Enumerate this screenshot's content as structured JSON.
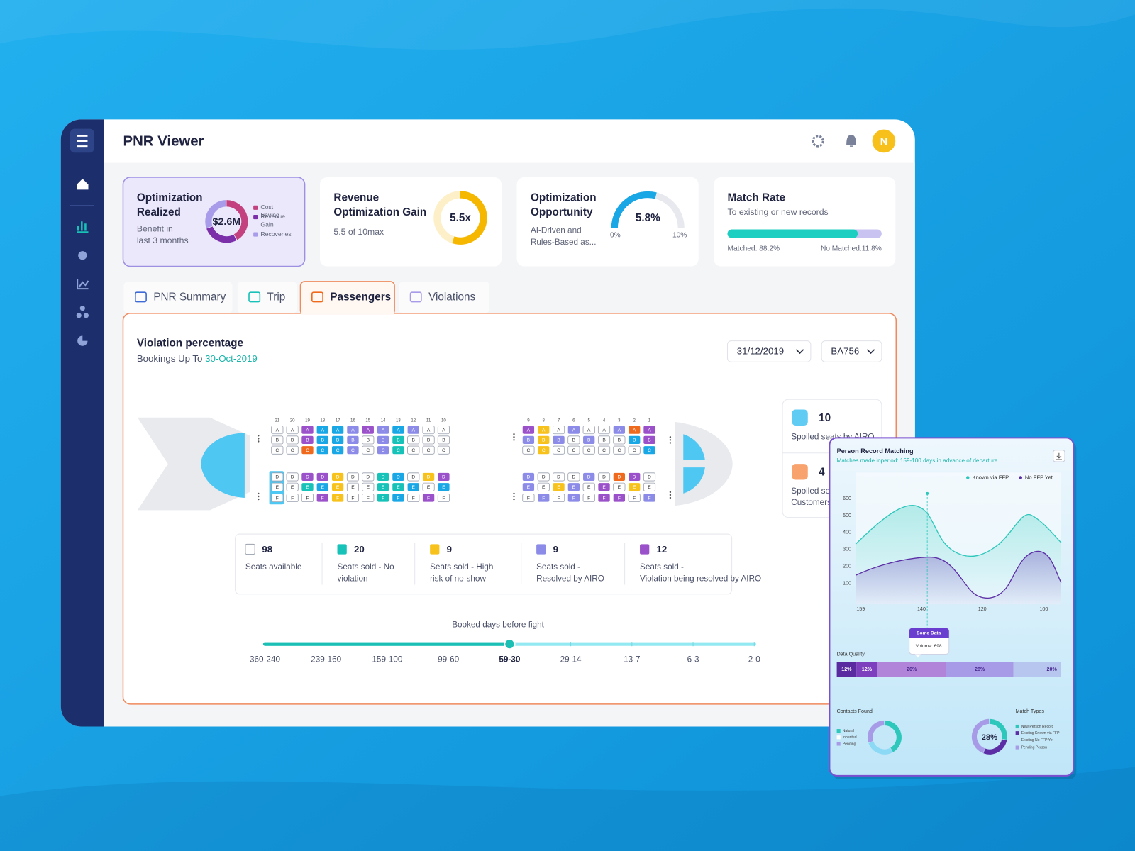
{
  "header": {
    "title": "PNR Viewer",
    "avatar": "N"
  },
  "cards": [
    {
      "title": "Optimization Realized",
      "subtitle": "Benefit in last 3 months",
      "center": "$2.6M",
      "legend": [
        "Cost Saving",
        "Revenue Gain",
        "Recoveries"
      ]
    },
    {
      "title": "Revenue Optimization Gain",
      "subtitle": "5.5 of 10max",
      "center": "5.5x"
    },
    {
      "title": "Optimization Opportunity",
      "subtitle": "AI-Driven and Rules-Based as...",
      "center": "5.8%",
      "min": "0%",
      "max": "10%"
    },
    {
      "title": "Match Rate",
      "subtitle": "To existing or new records",
      "left": "Matched: 88.2%",
      "right": "No Matched:11.8%"
    }
  ],
  "tabs": [
    "PNR Summary",
    "Trip",
    "Passengers",
    "Violations"
  ],
  "panel": {
    "title": "Violation percentage",
    "subtitle": "Bookings Up To",
    "date": "30-Oct-2019",
    "dropdowns": [
      "31/12/2019",
      "BA756"
    ]
  },
  "seat_map": {
    "rows": [
      21,
      20,
      19,
      18,
      17,
      16,
      15,
      14,
      13,
      12,
      11,
      10,
      9,
      8,
      7,
      6,
      5,
      4,
      3,
      2,
      1
    ],
    "letters": [
      "A",
      "B",
      "C",
      "D",
      "E",
      "F"
    ]
  },
  "side_stats": [
    {
      "count": "10",
      "label": "Spoiled seats by AIRO"
    },
    {
      "count": "4",
      "label": "Spoiled seats by Customers"
    }
  ],
  "seat_legend": [
    {
      "count": "98",
      "label": "Seats available"
    },
    {
      "count": "20",
      "label": "Seats sold - No violation"
    },
    {
      "count": "9",
      "label": "Seats sold - High risk of no-show"
    },
    {
      "count": "9",
      "label": "Seats sold - Resolved by AIRO"
    },
    {
      "count": "12",
      "label": "Seats sold - Violation being resolved by AIRO"
    }
  ],
  "timeline": {
    "title": "Booked days before fight",
    "labels": [
      "360-240",
      "239-160",
      "159-100",
      "99-60",
      "59-30",
      "29-14",
      "13-7",
      "6-3",
      "2-0"
    ]
  },
  "overlay": {
    "title": "Person Record Matching",
    "subtitle": "Matches made inperiod: 159-100 days in advance of departure",
    "legend": [
      "Known via FFP",
      "No FFP Yet"
    ],
    "yticks": [
      "600",
      "500",
      "400",
      "300",
      "200",
      "100"
    ],
    "xticks": [
      "159",
      "140",
      "120",
      "100"
    ],
    "tooltip": {
      "title": "Some Data",
      "text": "Volume: 698"
    },
    "data_quality": {
      "title": "Data Quality",
      "segments": [
        "12%",
        "12%",
        "26%",
        "28%",
        "20%"
      ]
    },
    "contacts": {
      "title": "Contacts Found",
      "legend": [
        "Natural",
        "Inherited",
        "Pending"
      ]
    },
    "match_types": {
      "title": "Match Types",
      "center": "28%",
      "legend": [
        "New Person Record",
        "Existing Known via FFP",
        "Existing No FFP Yet",
        "Pending Person"
      ]
    }
  }
}
